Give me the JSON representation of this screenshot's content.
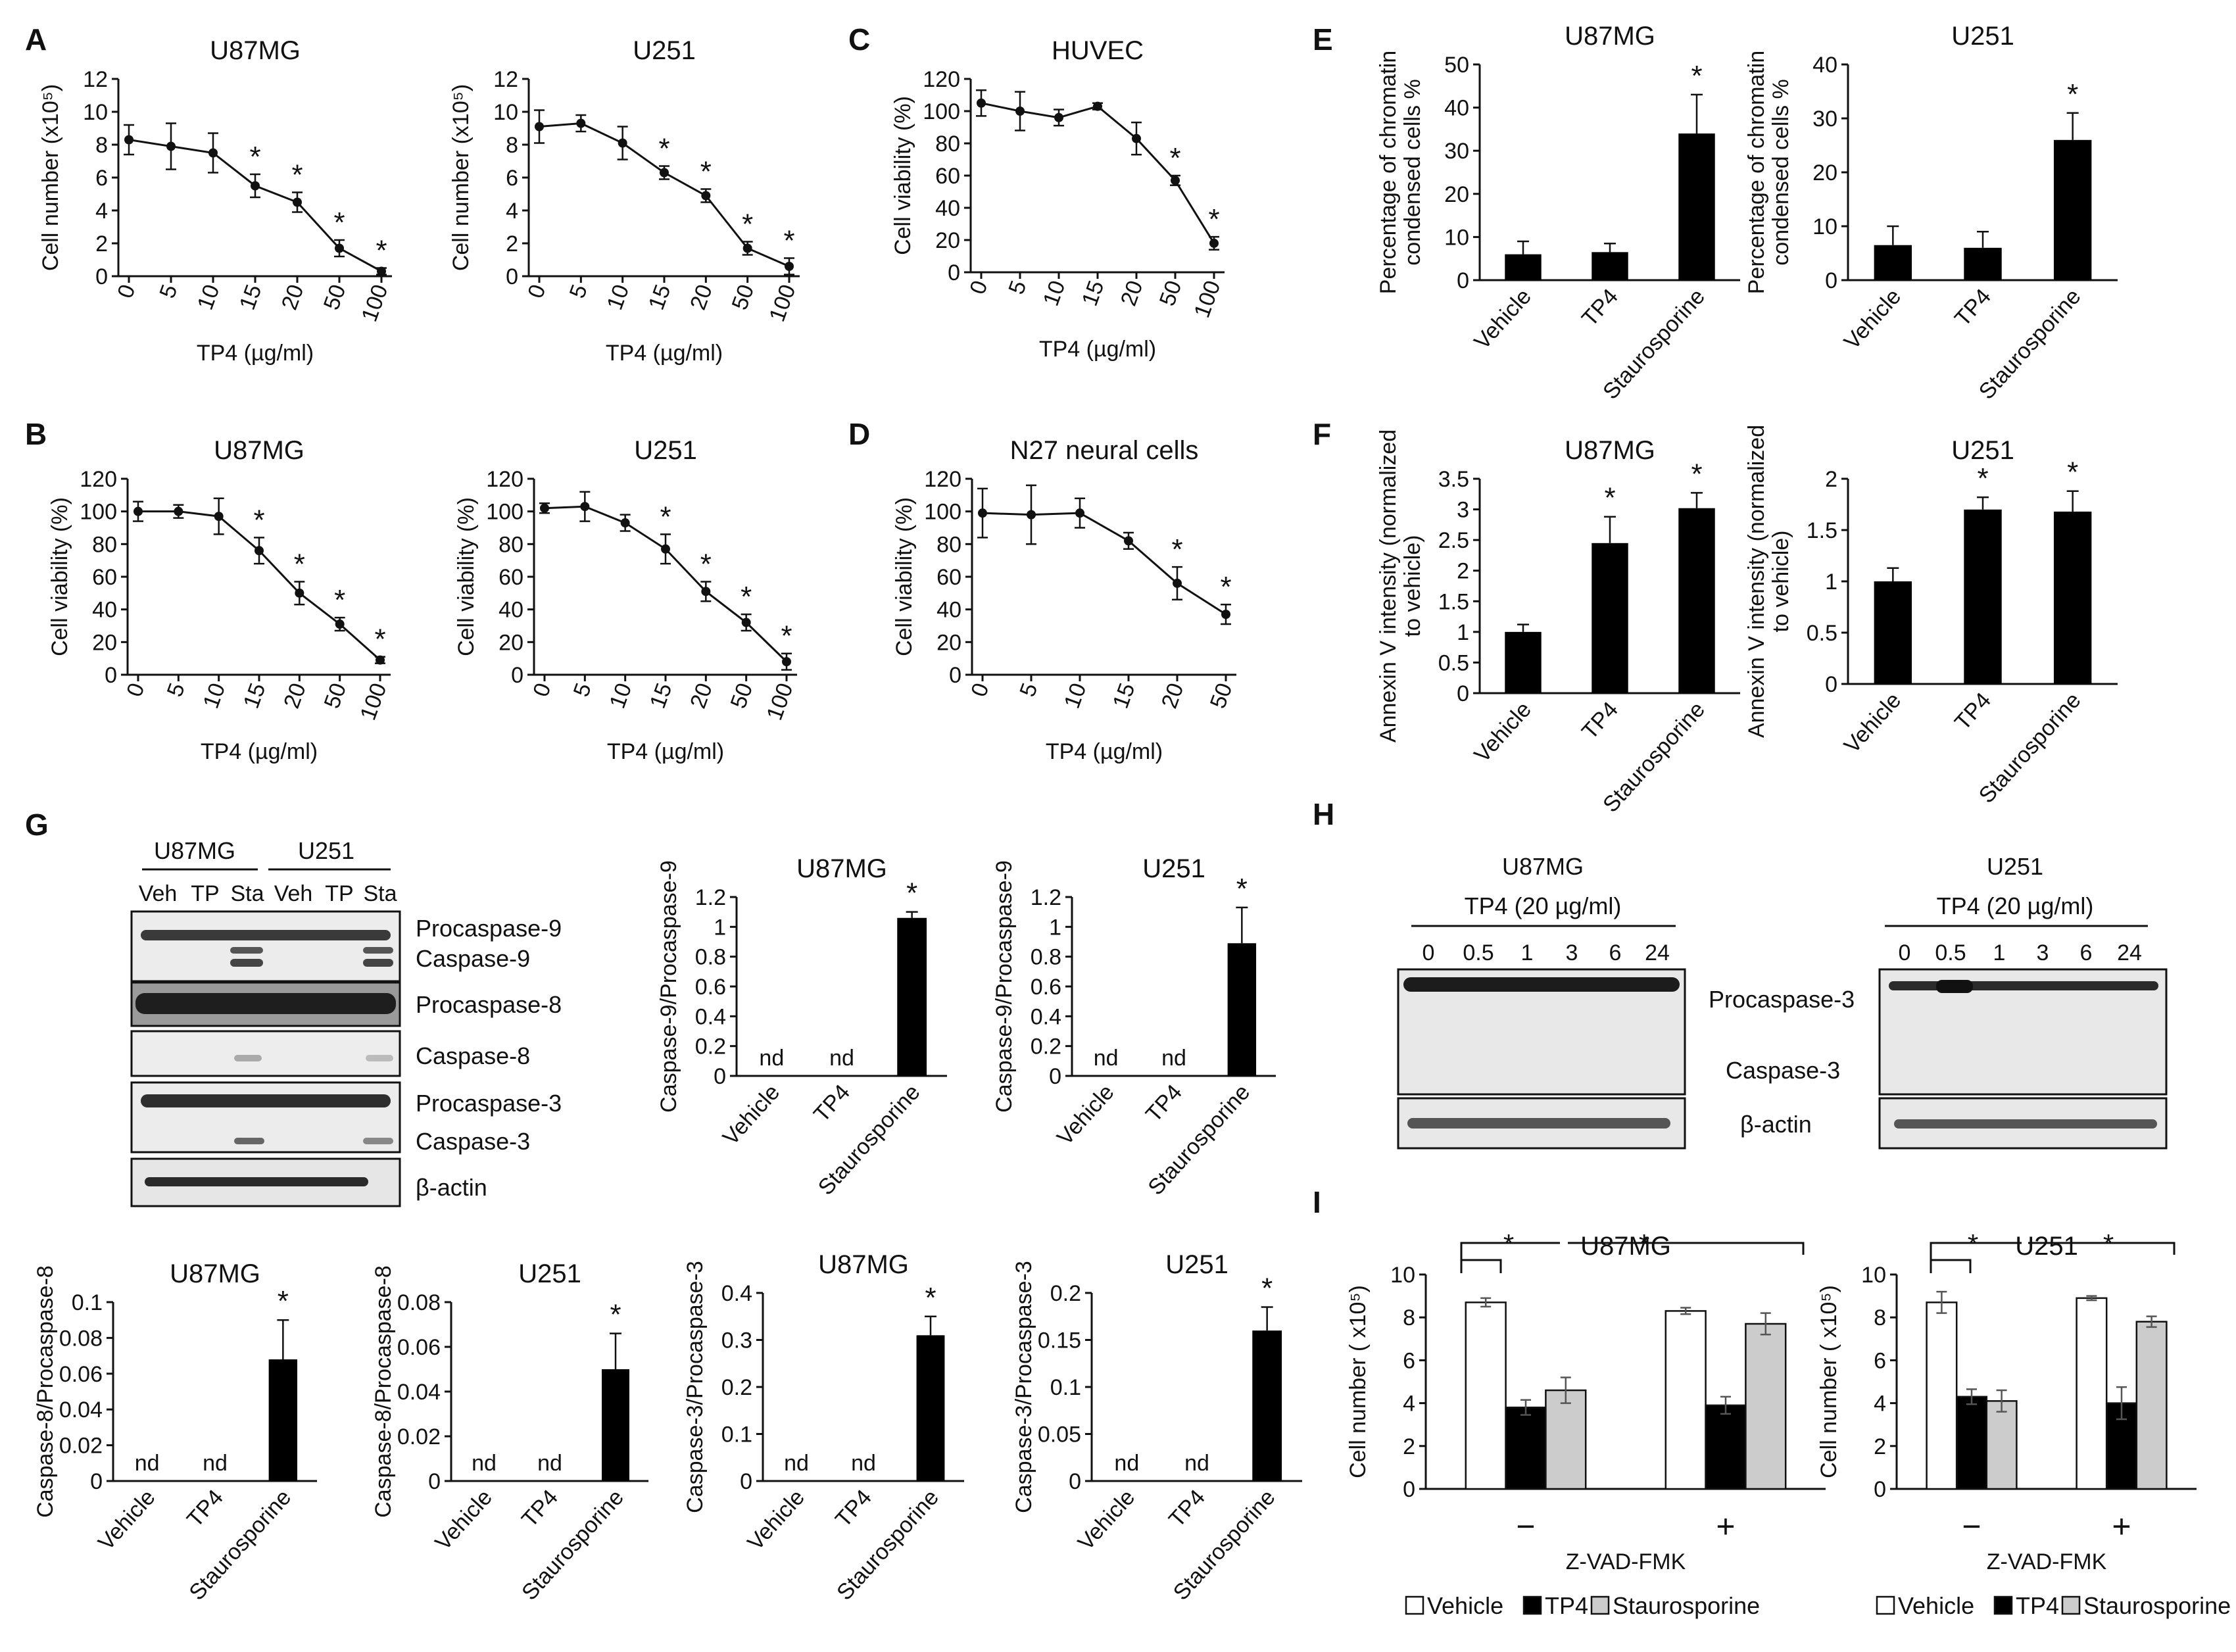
{
  "chart_data": [
    {
      "id": "A1",
      "panel": "A",
      "type": "line",
      "title": "U87MG",
      "xlabel": "TP4 (µg/ml)",
      "ylabel": "Cell number (x10⁵)",
      "categories": [
        "0",
        "5",
        "10",
        "15",
        "20",
        "50",
        "100"
      ],
      "values": [
        8.3,
        7.9,
        7.5,
        5.5,
        4.5,
        1.7,
        0.3
      ],
      "errors": [
        0.9,
        1.4,
        1.2,
        0.7,
        0.6,
        0.5,
        0.2
      ],
      "star": [
        false,
        false,
        false,
        true,
        true,
        true,
        true
      ],
      "ylim": [
        0,
        12
      ],
      "ystep": 2
    },
    {
      "id": "A2",
      "panel": "A",
      "type": "line",
      "title": "U251",
      "xlabel": "TP4 (µg/ml)",
      "ylabel": "Cell number (x10⁵)",
      "categories": [
        "0",
        "5",
        "10",
        "15",
        "20",
        "50",
        "100"
      ],
      "values": [
        9.1,
        9.3,
        8.1,
        6.3,
        4.9,
        1.7,
        0.6
      ],
      "errors": [
        1.0,
        0.5,
        1.0,
        0.4,
        0.4,
        0.4,
        0.5
      ],
      "star": [
        false,
        false,
        false,
        true,
        true,
        true,
        true
      ],
      "ylim": [
        0,
        12
      ],
      "ystep": 2
    },
    {
      "id": "C",
      "panel": "C",
      "type": "line",
      "title": "HUVEC",
      "xlabel": "TP4 (µg/ml)",
      "ylabel": "Cell viability (%)",
      "categories": [
        "0",
        "5",
        "10",
        "15",
        "20",
        "50",
        "100"
      ],
      "values": [
        105,
        100,
        96,
        103,
        83,
        57,
        18
      ],
      "errors": [
        8,
        12,
        5,
        2,
        10,
        3,
        4
      ],
      "star": [
        false,
        false,
        false,
        false,
        false,
        true,
        true
      ],
      "ylim": [
        0,
        120
      ],
      "ystep": 20
    },
    {
      "id": "E1",
      "panel": "E",
      "type": "bar",
      "title": "U87MG",
      "ylabel": "Percentage of chromatin condensed cells %",
      "categories": [
        "Vehicle",
        "TP4",
        "Staurosporine"
      ],
      "values": [
        6,
        6.5,
        34
      ],
      "errors": [
        3,
        2,
        9
      ],
      "star": [
        false,
        false,
        true
      ],
      "ylim": [
        0,
        50
      ],
      "ystep": 10
    },
    {
      "id": "E2",
      "panel": "E",
      "type": "bar",
      "title": "U251",
      "ylabel": "Percentage of chromatin condensed cells %",
      "categories": [
        "Vehicle",
        "TP4",
        "Staurosporine"
      ],
      "values": [
        6.5,
        6,
        26
      ],
      "errors": [
        3.5,
        3,
        5
      ],
      "star": [
        false,
        false,
        true
      ],
      "ylim": [
        0,
        40
      ],
      "ystep": 10
    },
    {
      "id": "B1",
      "panel": "B",
      "type": "line",
      "title": "U87MG",
      "xlabel": "TP4 (µg/ml)",
      "ylabel": "Cell viability (%)",
      "categories": [
        "0",
        "5",
        "10",
        "15",
        "20",
        "50",
        "100"
      ],
      "values": [
        100,
        100,
        97,
        76,
        50,
        31,
        9
      ],
      "errors": [
        6,
        4,
        11,
        8,
        7,
        4,
        2
      ],
      "star": [
        false,
        false,
        false,
        true,
        true,
        true,
        true
      ],
      "ylim": [
        0,
        120
      ],
      "ystep": 20
    },
    {
      "id": "B2",
      "panel": "B",
      "type": "line",
      "title": "U251",
      "xlabel": "TP4 (µg/ml)",
      "ylabel": "Cell viability (%)",
      "categories": [
        "0",
        "5",
        "10",
        "15",
        "20",
        "50",
        "100"
      ],
      "values": [
        102,
        103,
        93,
        77,
        51,
        32,
        8
      ],
      "errors": [
        3,
        9,
        5,
        9,
        6,
        5,
        5
      ],
      "star": [
        false,
        false,
        false,
        true,
        true,
        true,
        true
      ],
      "ylim": [
        0,
        120
      ],
      "ystep": 20
    },
    {
      "id": "D",
      "panel": "D",
      "type": "line",
      "title": "N27 neural cells",
      "xlabel": "TP4 (µg/ml)",
      "ylabel": "Cell viability (%)",
      "categories": [
        "0",
        "5",
        "10",
        "15",
        "20",
        "50"
      ],
      "values": [
        99,
        98,
        99,
        82,
        56,
        37
      ],
      "errors": [
        15,
        18,
        9,
        5,
        10,
        6
      ],
      "star": [
        false,
        false,
        false,
        false,
        true,
        true
      ],
      "ylim": [
        0,
        120
      ],
      "ystep": 20
    },
    {
      "id": "F1",
      "panel": "F",
      "type": "bar",
      "title": "U87MG",
      "ylabel": "Annexin V intensity (normalized to vehicle)",
      "categories": [
        "Vehicle",
        "TP4",
        "Staurosporine"
      ],
      "values": [
        1.0,
        2.45,
        3.02
      ],
      "errors": [
        0.12,
        0.43,
        0.25
      ],
      "star": [
        false,
        true,
        true
      ],
      "ylim": [
        0,
        3.5
      ],
      "ystep": 0.5
    },
    {
      "id": "F2",
      "panel": "F",
      "type": "bar",
      "title": "U251",
      "ylabel": "Annexin V intensity (normalized to vehicle)",
      "categories": [
        "Vehicle",
        "TP4",
        "Staurosporine"
      ],
      "values": [
        1.0,
        1.7,
        1.68
      ],
      "errors": [
        0.13,
        0.12,
        0.2
      ],
      "star": [
        false,
        true,
        true
      ],
      "ylim": [
        0,
        2
      ],
      "ystep": 0.5
    },
    {
      "id": "G1",
      "panel": "G",
      "type": "bar",
      "title": "U87MG",
      "ylabel": "Caspase-9/Procaspase-9",
      "categories": [
        "Vehicle",
        "TP4",
        "Staurosporine"
      ],
      "values": [
        null,
        null,
        1.06
      ],
      "errors": [
        0,
        0,
        0.04
      ],
      "star": [
        false,
        false,
        true
      ],
      "ylim": [
        0,
        1.2
      ],
      "ystep": 0.2
    },
    {
      "id": "G2",
      "panel": "G",
      "type": "bar",
      "title": "U251",
      "ylabel": "Caspase-9/Procaspase-9",
      "categories": [
        "Vehicle",
        "TP4",
        "Staurosporine"
      ],
      "values": [
        null,
        null,
        0.89
      ],
      "errors": [
        0,
        0,
        0.24
      ],
      "star": [
        false,
        false,
        true
      ],
      "ylim": [
        0,
        1.2
      ],
      "ystep": 0.2
    },
    {
      "id": "G3",
      "panel": "G",
      "type": "bar",
      "title": "U87MG",
      "ylabel": "Caspase-8/Procaspase-8",
      "categories": [
        "Vehicle",
        "TP4",
        "Staurosporine"
      ],
      "values": [
        null,
        null,
        0.068
      ],
      "errors": [
        0,
        0,
        0.022
      ],
      "star": [
        false,
        false,
        true
      ],
      "ylim": [
        0,
        0.1
      ],
      "ystep": 0.02
    },
    {
      "id": "G4",
      "panel": "G",
      "type": "bar",
      "title": "U251",
      "ylabel": "Caspase-8/Procaspase-8",
      "categories": [
        "Vehicle",
        "TP4",
        "Staurosporine"
      ],
      "values": [
        null,
        null,
        0.05
      ],
      "errors": [
        0,
        0,
        0.016
      ],
      "star": [
        false,
        false,
        true
      ],
      "ylim": [
        0,
        0.08
      ],
      "ystep": 0.02
    },
    {
      "id": "G5",
      "panel": "G",
      "type": "bar",
      "title": "U87MG",
      "ylabel": "Caspase-3/Procaspase-3",
      "categories": [
        "Vehicle",
        "TP4",
        "Staurosporine"
      ],
      "values": [
        null,
        null,
        0.31
      ],
      "errors": [
        0,
        0,
        0.04
      ],
      "star": [
        false,
        false,
        true
      ],
      "ylim": [
        0,
        0.4
      ],
      "ystep": 0.1
    },
    {
      "id": "G6",
      "panel": "G",
      "type": "bar",
      "title": "U251",
      "ylabel": "Caspase-3/Procaspase-3",
      "categories": [
        "Vehicle",
        "TP4",
        "Staurosporine"
      ],
      "values": [
        null,
        null,
        0.16
      ],
      "errors": [
        0,
        0,
        0.025
      ],
      "star": [
        false,
        false,
        true
      ],
      "ylim": [
        0,
        0.2
      ],
      "ystep": 0.05
    },
    {
      "id": "I1",
      "panel": "I",
      "type": "grouped-bar",
      "title": "U87MG",
      "ylabel": "Cell number ( x10⁵)",
      "xlabel": "Z-VAD-FMK",
      "groups": [
        "−",
        "+"
      ],
      "series": [
        {
          "name": "Vehicle",
          "color": "#ffffff",
          "values": [
            8.7,
            8.3
          ],
          "errors": [
            0.2,
            0.15
          ]
        },
        {
          "name": "TP4",
          "color": "#000000",
          "values": [
            3.8,
            3.9
          ],
          "errors": [
            0.35,
            0.4
          ]
        },
        {
          "name": "Staurosporine",
          "color": "#cccccc",
          "values": [
            4.6,
            7.7
          ],
          "errors": [
            0.6,
            0.5
          ]
        }
      ],
      "ylim": [
        0,
        10
      ],
      "ystep": 2,
      "star_text": "*"
    },
    {
      "id": "I2",
      "panel": "I",
      "type": "grouped-bar",
      "title": "U251",
      "ylabel": "Cell number ( x10⁵)",
      "xlabel": "Z-VAD-FMK",
      "groups": [
        "−",
        "+"
      ],
      "series": [
        {
          "name": "Vehicle",
          "color": "#ffffff",
          "values": [
            8.7,
            8.9
          ],
          "errors": [
            0.5,
            0.1
          ]
        },
        {
          "name": "TP4",
          "color": "#000000",
          "values": [
            4.3,
            4.0
          ],
          "errors": [
            0.35,
            0.75
          ]
        },
        {
          "name": "Staurosporine",
          "color": "#cccccc",
          "values": [
            4.1,
            7.8
          ],
          "errors": [
            0.5,
            0.25
          ]
        }
      ],
      "ylim": [
        0,
        10
      ],
      "ystep": 2,
      "star_text": "*"
    }
  ],
  "nd_label": "nd",
  "star_label": "*",
  "panel_letters": [
    "A",
    "B",
    "C",
    "D",
    "E",
    "F",
    "G",
    "H",
    "I"
  ],
  "blotG": {
    "groups": [
      "U87MG",
      "U251"
    ],
    "lanes": [
      "Veh",
      "TP",
      "Sta",
      "Veh",
      "TP",
      "Sta"
    ],
    "bands": [
      "Procaspase-9",
      "Caspase-9",
      "Procaspase-8",
      "Caspase-8",
      "Procaspase-3",
      "Caspase-3",
      "β-actin"
    ]
  },
  "blotH": {
    "left_title": "U87MG",
    "right_title": "U251",
    "treatment": "TP4 (20 µg/ml)",
    "times": [
      "0",
      "0.5",
      "1",
      "3",
      "6",
      "24"
    ],
    "bands": [
      "Procaspase-3",
      "Caspase-3",
      "β-actin"
    ]
  }
}
